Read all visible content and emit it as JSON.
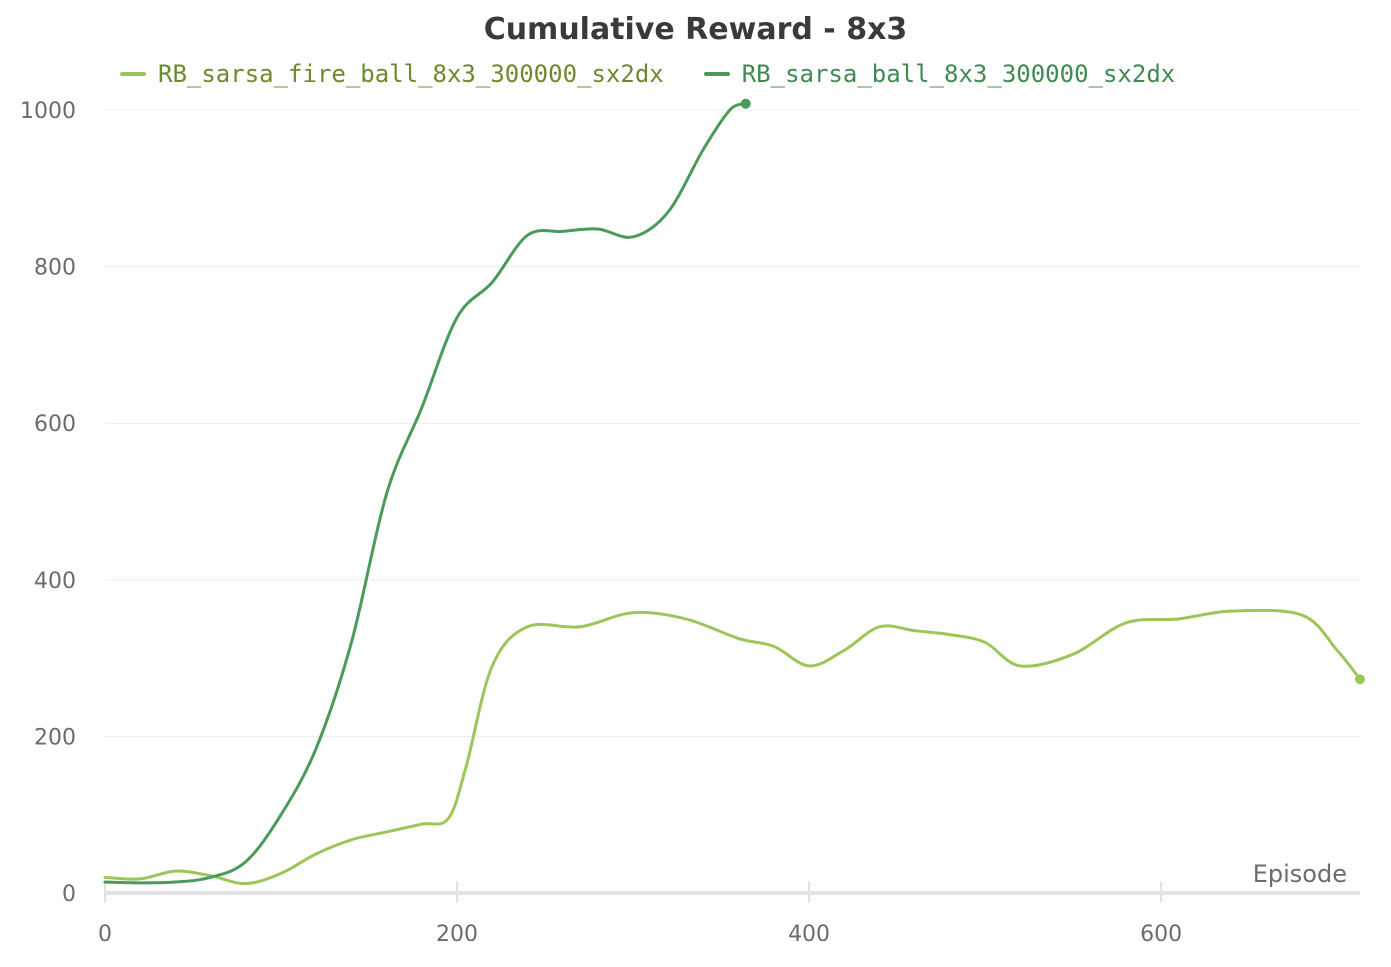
{
  "chart_data": {
    "type": "line",
    "title": "Cumulative Reward - 8x3",
    "xlabel": "Episode",
    "ylabel": "",
    "xlim": [
      0,
      713
    ],
    "ylim": [
      0,
      1000
    ],
    "x_ticks": [
      0,
      200,
      400,
      600
    ],
    "y_ticks": [
      0,
      200,
      400,
      600,
      800,
      1000
    ],
    "grid": true,
    "legend_position": "top",
    "series": [
      {
        "name": "RB_sarsa_fire_ball_8x3_300000_sx2dx",
        "color": "#9dc65a",
        "legend_text_color": "#6b8a2c",
        "x": [
          0,
          20,
          40,
          60,
          80,
          100,
          120,
          140,
          160,
          180,
          195,
          205,
          220,
          240,
          270,
          300,
          330,
          360,
          380,
          400,
          420,
          440,
          460,
          480,
          500,
          520,
          550,
          580,
          610,
          640,
          680,
          700,
          713
        ],
        "values": [
          20,
          18,
          28,
          22,
          12,
          25,
          50,
          68,
          78,
          88,
          95,
          160,
          290,
          340,
          340,
          358,
          350,
          325,
          315,
          290,
          310,
          340,
          335,
          330,
          320,
          290,
          305,
          345,
          350,
          360,
          355,
          310,
          273
        ]
      },
      {
        "name": "RB_sarsa_ball_8x3_300000_sx2dx",
        "color": "#4a9a5c",
        "legend_text_color": "#3f8a52",
        "x": [
          0,
          20,
          40,
          60,
          80,
          100,
          120,
          140,
          160,
          180,
          200,
          220,
          240,
          260,
          280,
          300,
          320,
          340,
          355,
          364
        ],
        "values": [
          14,
          13,
          14,
          20,
          40,
          100,
          185,
          320,
          510,
          620,
          735,
          780,
          840,
          845,
          848,
          838,
          870,
          950,
          1000,
          1008
        ]
      }
    ]
  }
}
